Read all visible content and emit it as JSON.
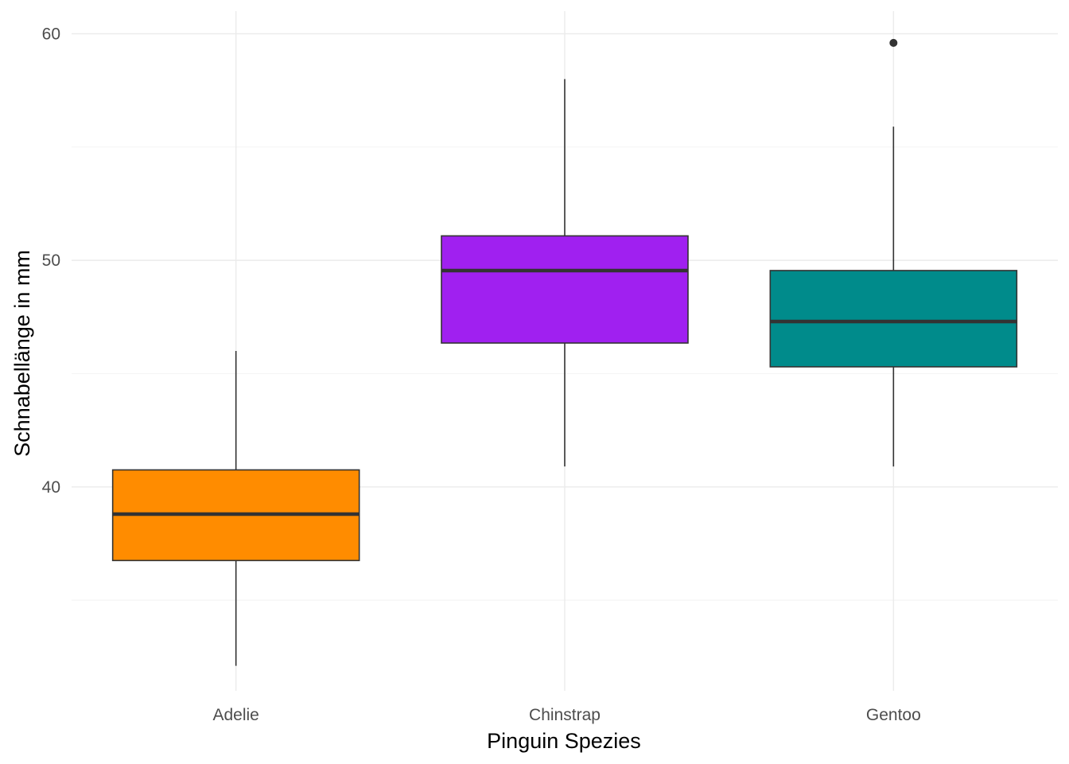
{
  "chart_data": {
    "type": "boxplot",
    "title": "",
    "xlabel": "Pinguin Spezies",
    "ylabel": "Schnabellänge in mm",
    "categories": [
      "Adelie",
      "Chinstrap",
      "Gentoo"
    ],
    "ylim": [
      31.0,
      61.0
    ],
    "yticks": [
      40,
      50,
      60
    ],
    "yticks_minor": [
      35,
      45,
      55
    ],
    "grid": true,
    "legend": "none",
    "series": [
      {
        "category": "Adelie",
        "min": 32.1,
        "q1": 36.75,
        "median": 38.8,
        "q3": 40.75,
        "max": 46.0,
        "outliers": [],
        "color": "#FF8C00"
      },
      {
        "category": "Chinstrap",
        "min": 40.9,
        "q1": 46.35,
        "median": 49.55,
        "q3": 51.08,
        "max": 58.0,
        "outliers": [],
        "color": "#A020F0"
      },
      {
        "category": "Gentoo",
        "min": 40.9,
        "q1": 45.3,
        "median": 47.3,
        "q3": 49.55,
        "max": 55.9,
        "outliers": [
          59.6
        ],
        "color": "#008B8B"
      }
    ]
  }
}
